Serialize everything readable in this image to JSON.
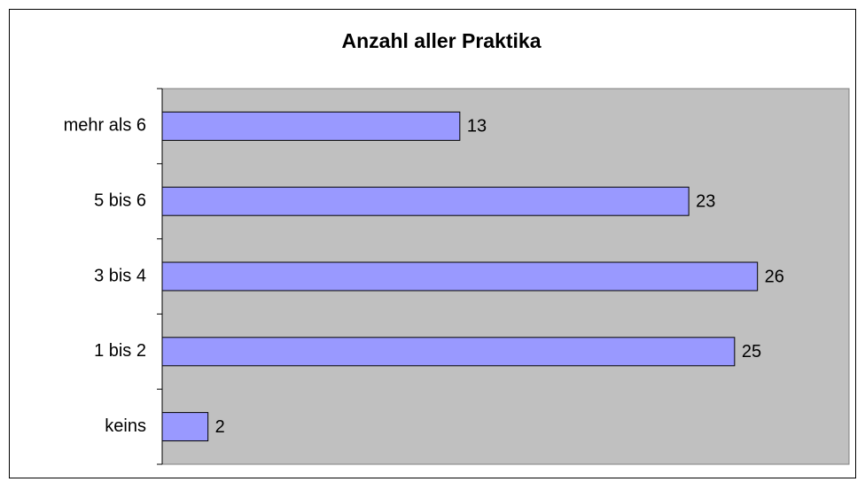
{
  "chart_data": {
    "type": "bar",
    "orientation": "horizontal",
    "title": "Anzahl aller Praktika",
    "categories": [
      "keins",
      "1 bis 2",
      "3 bis 4",
      "5 bis 6",
      "mehr als 6"
    ],
    "values": [
      2,
      25,
      26,
      23,
      13
    ],
    "color": "#9999ff",
    "xlim": [
      0,
      30
    ],
    "plot_background": "#c0c0c0"
  }
}
